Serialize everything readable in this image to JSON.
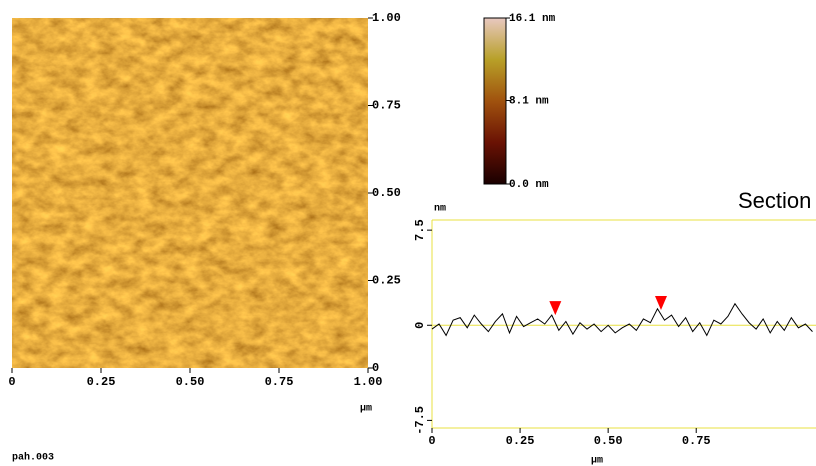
{
  "chart_data": [
    {
      "type": "heatmap",
      "xlim": [
        0,
        1
      ],
      "xticks": [
        0,
        0.25,
        {
          "value": 0.5,
          "label": "0.50"
        },
        0.75,
        {
          "value": 1,
          "label": "1.00"
        }
      ],
      "ylim": [
        0,
        1
      ],
      "yticks": [
        0,
        0.25,
        {
          "value": 0.5,
          "label": "0.50"
        },
        0.75,
        {
          "value": 1,
          "label": "1.00"
        }
      ],
      "x_label": "µm",
      "colorbar": {
        "lim": [
          0,
          16.1
        ],
        "ticks": [
          {
            "value": 0,
            "label": "0.0 nm"
          },
          {
            "value": 8.1,
            "label": "8.1 nm"
          },
          {
            "value": 16.1,
            "label": "16.1 nm"
          }
        ],
        "colors": [
          "#1a0000",
          "#6a1204",
          "#a0520e",
          "#b8a028",
          "#e8c8c0"
        ]
      },
      "footer": "pah.003"
    },
    {
      "type": "line",
      "title": "Section",
      "xlim": [
        0,
        1.09
      ],
      "xticks": [
        0,
        0.25,
        {
          "value": 0.5,
          "label": "0.50"
        },
        0.75
      ],
      "ylim": [
        -8.1,
        8.3
      ],
      "yticks": [
        -7.5,
        0,
        7.5
      ],
      "x_label": "µm",
      "y_label": "nm",
      "color": "#000000",
      "line_color": "#e8e040",
      "x": [
        0,
        0.02,
        0.04,
        0.06,
        0.08,
        0.1,
        0.12,
        0.14,
        0.16,
        0.18,
        0.2,
        0.22,
        0.24,
        0.26,
        0.28,
        0.3,
        0.32,
        0.34,
        0.36,
        0.38,
        0.4,
        0.42,
        0.44,
        0.46,
        0.48,
        0.5,
        0.52,
        0.54,
        0.56,
        0.58,
        0.6,
        0.62,
        0.64,
        0.66,
        0.68,
        0.7,
        0.72,
        0.74,
        0.76,
        0.78,
        0.8,
        0.82,
        0.84,
        0.86,
        0.88,
        0.9,
        0.92,
        0.94,
        0.96,
        0.98,
        1.0,
        1.02,
        1.04,
        1.06,
        1.08
      ],
      "values": [
        -0.3,
        0.1,
        -0.8,
        0.4,
        0.6,
        -0.2,
        0.8,
        0.1,
        -0.5,
        0.3,
        0.9,
        -0.6,
        0.7,
        -0.1,
        0.2,
        0.5,
        0.1,
        0.8,
        -0.4,
        0.3,
        -0.7,
        0.2,
        -0.3,
        0.1,
        -0.5,
        0.0,
        -0.6,
        -0.2,
        0.1,
        -0.4,
        0.5,
        0.2,
        1.3,
        0.4,
        0.8,
        -0.1,
        0.6,
        -0.5,
        0.2,
        -0.8,
        0.4,
        0.1,
        0.7,
        1.7,
        0.9,
        0.2,
        -0.3,
        0.5,
        -0.6,
        0.3,
        -0.4,
        0.6,
        -0.2,
        0.1,
        -0.5
      ],
      "markers": [
        {
          "x": 0.35,
          "y": 0.8,
          "color": "#ff0000"
        },
        {
          "x": 0.65,
          "y": 1.2,
          "color": "#ff0000"
        }
      ]
    }
  ]
}
